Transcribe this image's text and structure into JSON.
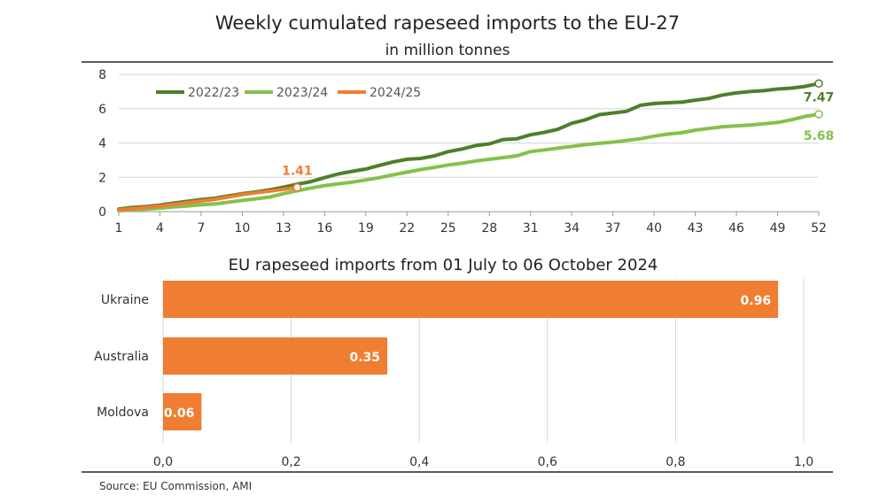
{
  "colors": {
    "s2223": "#4e7f2a",
    "s2324": "#84c14a",
    "s2425": "#ef7d32",
    "bar": "#ef7d32",
    "grid": "#d6d6d6",
    "divider": "#222222",
    "text": "#333333"
  },
  "source": "Source: EU Commission, AMI",
  "chart_data": [
    {
      "type": "line",
      "title": "Weekly cumulated rapeseed imports to the EU-27",
      "subtitle": "in million tonnes",
      "xlim": [
        1,
        52
      ],
      "ylim": [
        0,
        8
      ],
      "x_ticks": [
        1,
        4,
        7,
        10,
        13,
        16,
        19,
        22,
        25,
        28,
        31,
        34,
        37,
        40,
        43,
        46,
        49,
        52
      ],
      "y_ticks": [
        0,
        2,
        4,
        6,
        8
      ],
      "grid": "horizontal",
      "legend_position": "top-left",
      "series": [
        {
          "name": "2022/23",
          "color_key": "s2223",
          "end_label": "7.47",
          "x": [
            1,
            2,
            3,
            4,
            5,
            6,
            7,
            8,
            9,
            10,
            11,
            12,
            13,
            14,
            15,
            16,
            17,
            18,
            19,
            20,
            21,
            22,
            23,
            24,
            25,
            26,
            27,
            28,
            29,
            30,
            31,
            32,
            33,
            34,
            35,
            36,
            37,
            38,
            39,
            40,
            41,
            42,
            43,
            44,
            45,
            46,
            47,
            48,
            49,
            50,
            51,
            52
          ],
          "y": [
            0.15,
            0.25,
            0.3,
            0.38,
            0.5,
            0.6,
            0.7,
            0.78,
            0.92,
            1.05,
            1.15,
            1.27,
            1.42,
            1.6,
            1.75,
            1.98,
            2.2,
            2.35,
            2.48,
            2.7,
            2.9,
            3.05,
            3.1,
            3.25,
            3.5,
            3.65,
            3.85,
            3.95,
            4.2,
            4.25,
            4.48,
            4.62,
            4.8,
            5.15,
            5.35,
            5.65,
            5.75,
            5.85,
            6.2,
            6.3,
            6.35,
            6.38,
            6.5,
            6.6,
            6.8,
            6.92,
            7.0,
            7.05,
            7.15,
            7.2,
            7.3,
            7.47
          ]
        },
        {
          "name": "2023/24",
          "color_key": "s2324",
          "end_label": "5.68",
          "x": [
            1,
            2,
            3,
            4,
            5,
            6,
            7,
            8,
            9,
            10,
            11,
            12,
            13,
            14,
            15,
            16,
            17,
            18,
            19,
            20,
            21,
            22,
            23,
            24,
            25,
            26,
            27,
            28,
            29,
            30,
            31,
            32,
            33,
            34,
            35,
            36,
            37,
            38,
            39,
            40,
            41,
            42,
            43,
            44,
            45,
            46,
            47,
            48,
            49,
            50,
            51,
            52
          ],
          "y": [
            0.05,
            0.1,
            0.15,
            0.2,
            0.28,
            0.33,
            0.4,
            0.45,
            0.55,
            0.65,
            0.75,
            0.85,
            1.05,
            1.22,
            1.38,
            1.52,
            1.62,
            1.72,
            1.85,
            1.98,
            2.15,
            2.3,
            2.45,
            2.58,
            2.72,
            2.82,
            2.95,
            3.05,
            3.15,
            3.25,
            3.5,
            3.6,
            3.7,
            3.8,
            3.9,
            3.98,
            4.05,
            4.15,
            4.25,
            4.4,
            4.52,
            4.6,
            4.75,
            4.85,
            4.95,
            5.0,
            5.05,
            5.12,
            5.2,
            5.35,
            5.55,
            5.68
          ]
        },
        {
          "name": "2024/25",
          "color_key": "s2425",
          "end_label": "1.41",
          "x": [
            1,
            2,
            3,
            4,
            5,
            6,
            7,
            8,
            9,
            10,
            11,
            12,
            13,
            14
          ],
          "y": [
            0.1,
            0.18,
            0.25,
            0.32,
            0.42,
            0.52,
            0.62,
            0.72,
            0.85,
            1.0,
            1.1,
            1.2,
            1.3,
            1.41
          ]
        }
      ]
    },
    {
      "type": "bar",
      "orientation": "horizontal",
      "title": "EU rapeseed imports from 01 July to 06 October 2024",
      "categories": [
        "Ukraine",
        "Australia",
        "Moldova"
      ],
      "values": [
        0.96,
        0.35,
        0.06
      ],
      "value_labels": [
        "0.96",
        "0.35",
        "0.06"
      ],
      "xlim": [
        0,
        1.0
      ],
      "x_ticks": [
        "0,0",
        "0,2",
        "0,4",
        "0,6",
        "0,8",
        "1,0"
      ],
      "grid": "vertical"
    }
  ]
}
